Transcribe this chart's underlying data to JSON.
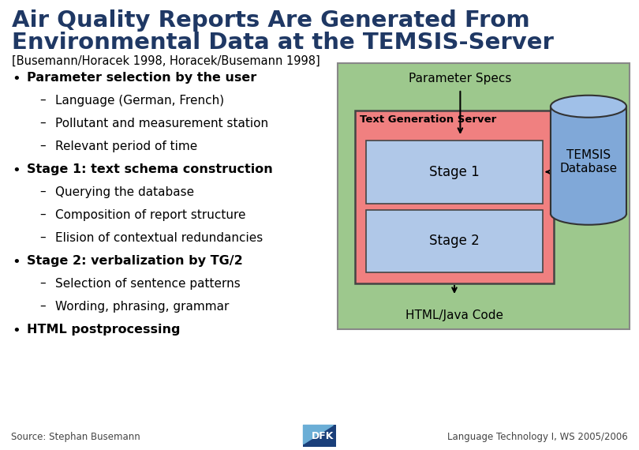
{
  "title_line1": "Air Quality Reports Are Generated From",
  "title_line2": "Environmental Data at the TEMSIS-Server",
  "subtitle": "[Busemann/Horacek 1998, Horacek/Busemann 1998]",
  "title_color": "#1F3864",
  "subtitle_color": "#000000",
  "bg_color": "#FFFFFF",
  "bullet_points": [
    {
      "level": 0,
      "bold": true,
      "text": "Parameter selection by the user"
    },
    {
      "level": 1,
      "bold": false,
      "text": "Language (German, French)"
    },
    {
      "level": 1,
      "bold": false,
      "text": "Pollutant and measurement station"
    },
    {
      "level": 1,
      "bold": false,
      "text": "Relevant period of time"
    },
    {
      "level": 0,
      "bold": true,
      "text": "Stage 1: text schema construction"
    },
    {
      "level": 1,
      "bold": false,
      "text": "Querying the database"
    },
    {
      "level": 1,
      "bold": false,
      "text": "Composition of report structure"
    },
    {
      "level": 1,
      "bold": false,
      "text": "Elision of contextual redundancies"
    },
    {
      "level": 0,
      "bold": true,
      "text": "Stage 2: verbalization by TG/2"
    },
    {
      "level": 1,
      "bold": false,
      "text": "Selection of sentence patterns"
    },
    {
      "level": 1,
      "bold": false,
      "text": "Wording, phrasing, grammar"
    },
    {
      "level": 0,
      "bold": true,
      "text": "HTML postprocessing"
    }
  ],
  "diagram": {
    "outer_box_color": "#9DC88D",
    "server_box_color": "#F08080",
    "stage_box_color": "#B0C8E8",
    "cylinder_body_color": "#80A8D8",
    "cylinder_top_color": "#A0C0E8",
    "param_specs_text": "Parameter Specs",
    "server_label": "Text Generation Server",
    "stage1_text": "Stage 1",
    "stage2_text": "Stage 2",
    "html_text": "HTML/Java Code",
    "temsis_text": "TEMSIS\nDatabase"
  },
  "footer_source": "Source: Stephan Busemann",
  "footer_course": "Language Technology I, WS 2005/2006"
}
